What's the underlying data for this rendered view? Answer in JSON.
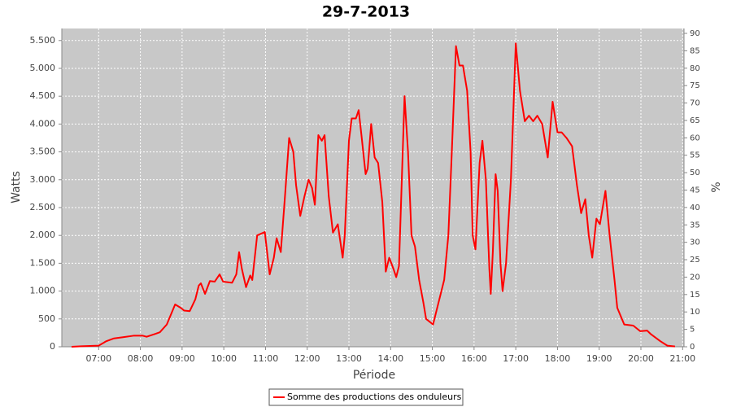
{
  "chart_data": {
    "type": "line",
    "title": "29-7-2013",
    "xlabel": "Période",
    "ylabel": "Watts",
    "y2label": "%",
    "x": [
      "06:21",
      "06:35",
      "07:00",
      "07:11",
      "07:22",
      "07:34",
      "07:51",
      "08:03",
      "08:09",
      "08:21",
      "08:28",
      "08:38",
      "08:50",
      "08:58",
      "09:03",
      "09:11",
      "09:19",
      "09:24",
      "09:27",
      "09:33",
      "09:40",
      "09:47",
      "09:54",
      "09:59",
      "10:12",
      "10:18",
      "10:22",
      "10:26",
      "10:32",
      "10:38",
      "10:41",
      "10:48",
      "10:59",
      "11:06",
      "11:12",
      "11:16",
      "11:22",
      "11:28",
      "11:34",
      "11:40",
      "11:44",
      "11:50",
      "11:56",
      "12:02",
      "12:07",
      "12:11",
      "12:16",
      "12:21",
      "12:25",
      "12:31",
      "12:37",
      "12:44",
      "12:51",
      "12:54",
      "13:00",
      "13:04",
      "13:10",
      "13:14",
      "13:18",
      "13:24",
      "13:27",
      "13:32",
      "13:37",
      "13:42",
      "13:48",
      "13:53",
      "13:58",
      "14:04",
      "14:08",
      "14:12",
      "14:20",
      "14:25",
      "14:30",
      "14:35",
      "14:41",
      "14:47",
      "14:51",
      "15:01",
      "15:08",
      "15:17",
      "15:23",
      "15:28",
      "15:34",
      "15:39",
      "15:44",
      "15:50",
      "15:55",
      "15:58",
      "16:02",
      "16:08",
      "16:12",
      "16:17",
      "16:22",
      "16:24",
      "16:27",
      "16:31",
      "16:34",
      "16:38",
      "16:41",
      "16:46",
      "16:53",
      "17:00",
      "17:06",
      "17:13",
      "17:19",
      "17:25",
      "17:31",
      "17:38",
      "17:46",
      "17:53",
      "18:00",
      "18:06",
      "18:13",
      "18:21",
      "18:28",
      "18:34",
      "18:40",
      "18:45",
      "18:50",
      "18:56",
      "19:01",
      "19:09",
      "19:15",
      "19:22",
      "19:26",
      "19:36",
      "19:49",
      "19:59",
      "20:09",
      "20:14",
      "20:28",
      "20:38",
      "20:49"
    ],
    "series": [
      {
        "name": "Somme des productions des onduleurs",
        "color": "#ff0000",
        "values": [
          0,
          10,
          20,
          100,
          150,
          170,
          200,
          200,
          180,
          230,
          260,
          400,
          760,
          700,
          650,
          640,
          850,
          1100,
          1140,
          950,
          1180,
          1170,
          1300,
          1170,
          1150,
          1300,
          1700,
          1400,
          1070,
          1280,
          1200,
          2000,
          2060,
          1300,
          1600,
          1950,
          1700,
          2700,
          3750,
          3500,
          2900,
          2350,
          2700,
          3000,
          2850,
          2550,
          3800,
          3700,
          3800,
          2700,
          2050,
          2200,
          1600,
          2000,
          3700,
          4100,
          4100,
          4250,
          3800,
          3100,
          3200,
          4000,
          3400,
          3300,
          2600,
          1350,
          1600,
          1400,
          1250,
          1450,
          4500,
          3500,
          2000,
          1800,
          1200,
          800,
          500,
          400,
          750,
          1200,
          2000,
          3500,
          5400,
          5050,
          5050,
          4600,
          3500,
          2000,
          1750,
          3300,
          3700,
          3000,
          1400,
          950,
          1700,
          3100,
          2800,
          1500,
          1000,
          1500,
          3000,
          5450,
          4600,
          4050,
          4150,
          4050,
          4150,
          4000,
          3400,
          4400,
          3850,
          3850,
          3750,
          3600,
          2900,
          2400,
          2650,
          2000,
          1600,
          2300,
          2200,
          2800,
          2000,
          1200,
          700,
          400,
          380,
          280,
          290,
          230,
          100,
          20,
          5
        ]
      }
    ],
    "xlim": [
      "06:07",
      "21:02"
    ],
    "xticks": [
      "07:00",
      "08:00",
      "09:00",
      "10:00",
      "11:00",
      "12:00",
      "13:00",
      "14:00",
      "15:00",
      "16:00",
      "17:00",
      "18:00",
      "19:00",
      "20:00",
      "21:00"
    ],
    "ylim": [
      0,
      5716
    ],
    "yticks": [
      0,
      500,
      {
        "value": 1000,
        "label": "1.000"
      },
      {
        "value": 1500,
        "label": "1.500"
      },
      {
        "value": 2000,
        "label": "2.000"
      },
      {
        "value": 2500,
        "label": "2.500"
      },
      {
        "value": 3000,
        "label": "3.000"
      },
      {
        "value": 3500,
        "label": "3.500"
      },
      {
        "value": 4000,
        "label": "4.000"
      },
      {
        "value": 4500,
        "label": "4.500"
      },
      {
        "value": 5000,
        "label": "5.000"
      },
      {
        "value": 5500,
        "label": "5.500"
      }
    ],
    "y2lim": [
      0,
      91.4
    ],
    "y2ticks": [
      0,
      5,
      10,
      15,
      20,
      25,
      30,
      35,
      40,
      45,
      50,
      55,
      60,
      65,
      70,
      75,
      80,
      85,
      90
    ],
    "grid": true
  }
}
